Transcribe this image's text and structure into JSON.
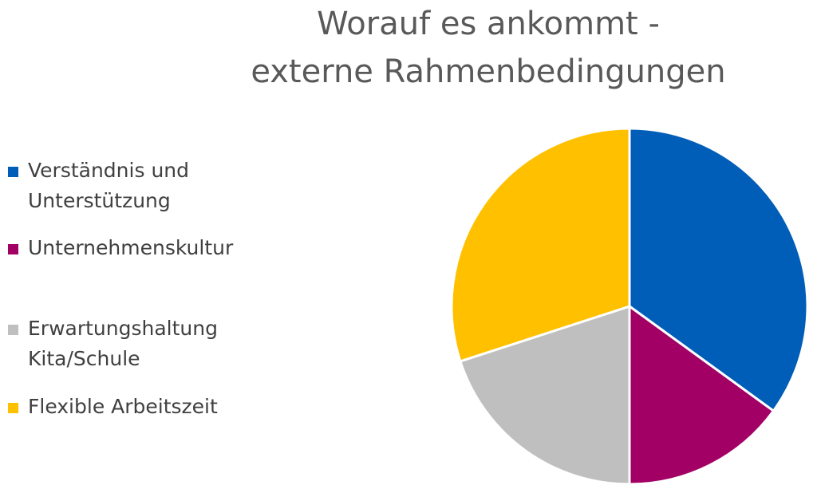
{
  "chart_data": {
    "type": "pie",
    "title_lines": [
      "Worauf es ankommt -",
      "externe Rahmenbedingungen"
    ],
    "slices": [
      {
        "label_lines": [
          "Verständnis und",
          "Unterstützung"
        ],
        "value": 35,
        "color": "#005EB8"
      },
      {
        "label_lines": [
          "Unternehmenskultur"
        ],
        "value": 15,
        "color": "#A30066"
      },
      {
        "label_lines": [
          "Erwartungshaltung",
          "Kita/Schule"
        ],
        "value": 20,
        "color": "#BFBFBF"
      },
      {
        "label_lines": [
          "Flexible Arbeitszeit"
        ],
        "value": 30,
        "color": "#FFC000"
      }
    ],
    "legend_position": "left",
    "start_angle": "12 o'clock, clockwise",
    "slice_border_color": "#FFFFFF"
  }
}
